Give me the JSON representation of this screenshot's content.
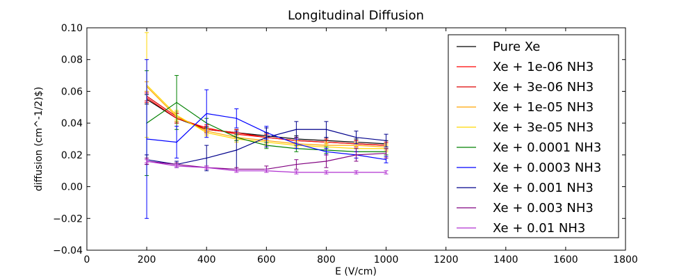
{
  "chart_data": {
    "type": "line",
    "title": "Longitudinal Diffusion",
    "xlabel": "E (V/cm)",
    "ylabel": "diffusion (cm^-1/2)$)",
    "xlim": [
      0,
      1800
    ],
    "ylim": [
      -0.04,
      0.1
    ],
    "xticks": [
      0,
      200,
      400,
      600,
      800,
      1000,
      1200,
      1400,
      1600,
      1800
    ],
    "yticks": [
      -0.04,
      -0.02,
      0.0,
      0.02,
      0.04,
      0.06,
      0.08,
      0.1
    ],
    "xtick_labels": [
      "0",
      "200",
      "400",
      "600",
      "800",
      "1000",
      "1200",
      "1400",
      "1600",
      "1800"
    ],
    "ytick_labels": [
      "−0.04",
      "−0.02",
      "0.00",
      "0.02",
      "0.04",
      "0.06",
      "0.08",
      "0.10"
    ],
    "grid": false,
    "legend_position": "upper-right",
    "x": [
      200,
      300,
      400,
      500,
      600,
      700,
      800,
      900,
      1000
    ],
    "series": [
      {
        "name": "Pure Xe",
        "color": "#000000",
        "values": [
          0.055,
          0.043,
          0.036,
          0.034,
          0.032,
          0.03,
          0.029,
          0.028,
          0.027
        ],
        "errors": [
          0.003,
          0.003,
          0.002,
          0.002,
          0.002,
          0.002,
          0.002,
          0.002,
          0.002
        ]
      },
      {
        "name": "Xe + 1e-06 NH3",
        "color": "#ff0000",
        "values": [
          0.056,
          0.043,
          0.037,
          0.033,
          0.031,
          0.029,
          0.028,
          0.027,
          0.026
        ],
        "errors": [
          0.003,
          0.003,
          0.002,
          0.002,
          0.002,
          0.002,
          0.002,
          0.002,
          0.002
        ]
      },
      {
        "name": "Xe + 3e-06 NH3",
        "color": "#dd0000",
        "values": [
          0.057,
          0.044,
          0.036,
          0.034,
          0.031,
          0.029,
          0.028,
          0.027,
          0.026
        ],
        "errors": [
          0.003,
          0.003,
          0.002,
          0.002,
          0.002,
          0.002,
          0.002,
          0.002,
          0.002
        ]
      },
      {
        "name": "Xe + 1e-05 NH3",
        "color": "#ffa500",
        "values": [
          0.063,
          0.044,
          0.035,
          0.031,
          0.029,
          0.027,
          0.026,
          0.026,
          0.025
        ],
        "errors": [
          0.003,
          0.003,
          0.002,
          0.002,
          0.002,
          0.002,
          0.002,
          0.002,
          0.002
        ]
      },
      {
        "name": "Xe + 3e-05 NH3",
        "color": "#ffd700",
        "values": [
          0.064,
          0.045,
          0.034,
          0.03,
          0.028,
          0.026,
          0.025,
          0.024,
          0.024
        ],
        "errors": [
          0.033,
          0.003,
          0.002,
          0.002,
          0.002,
          0.002,
          0.002,
          0.002,
          0.002
        ]
      },
      {
        "name": "Xe + 0.0001 NH3",
        "color": "#008000",
        "values": [
          0.04,
          0.053,
          0.04,
          0.031,
          0.026,
          0.024,
          0.023,
          0.022,
          0.022
        ],
        "errors": [
          0.033,
          0.017,
          0.003,
          0.002,
          0.002,
          0.002,
          0.002,
          0.002,
          0.002
        ]
      },
      {
        "name": "Xe + 0.0003 NH3",
        "color": "#0000ff",
        "values": [
          0.03,
          0.028,
          0.046,
          0.043,
          0.034,
          0.027,
          0.022,
          0.02,
          0.017
        ],
        "errors": [
          0.05,
          0.01,
          0.015,
          0.006,
          0.004,
          0.003,
          0.002,
          0.002,
          0.002
        ]
      },
      {
        "name": "Xe + 0.001 NH3",
        "color": "#00008b",
        "values": [
          0.017,
          0.014,
          0.018,
          0.023,
          0.031,
          0.036,
          0.036,
          0.031,
          0.029
        ],
        "errors": [
          0.003,
          0.002,
          0.008,
          0.012,
          0.006,
          0.005,
          0.005,
          0.004,
          0.004
        ]
      },
      {
        "name": "Xe + 0.003 NH3",
        "color": "#800080",
        "values": [
          0.016,
          0.014,
          0.012,
          0.011,
          0.011,
          0.014,
          0.016,
          0.02,
          0.021
        ],
        "errors": [
          0.002,
          0.001,
          0.001,
          0.001,
          0.002,
          0.003,
          0.004,
          0.004,
          0.003
        ]
      },
      {
        "name": "Xe + 0.01 NH3",
        "color": "#b030d0",
        "values": [
          0.016,
          0.013,
          0.012,
          0.01,
          0.01,
          0.009,
          0.009,
          0.009,
          0.009
        ],
        "errors": [
          0.001,
          0.001,
          0.001,
          0.001,
          0.001,
          0.001,
          0.001,
          0.001,
          0.001
        ]
      }
    ]
  }
}
